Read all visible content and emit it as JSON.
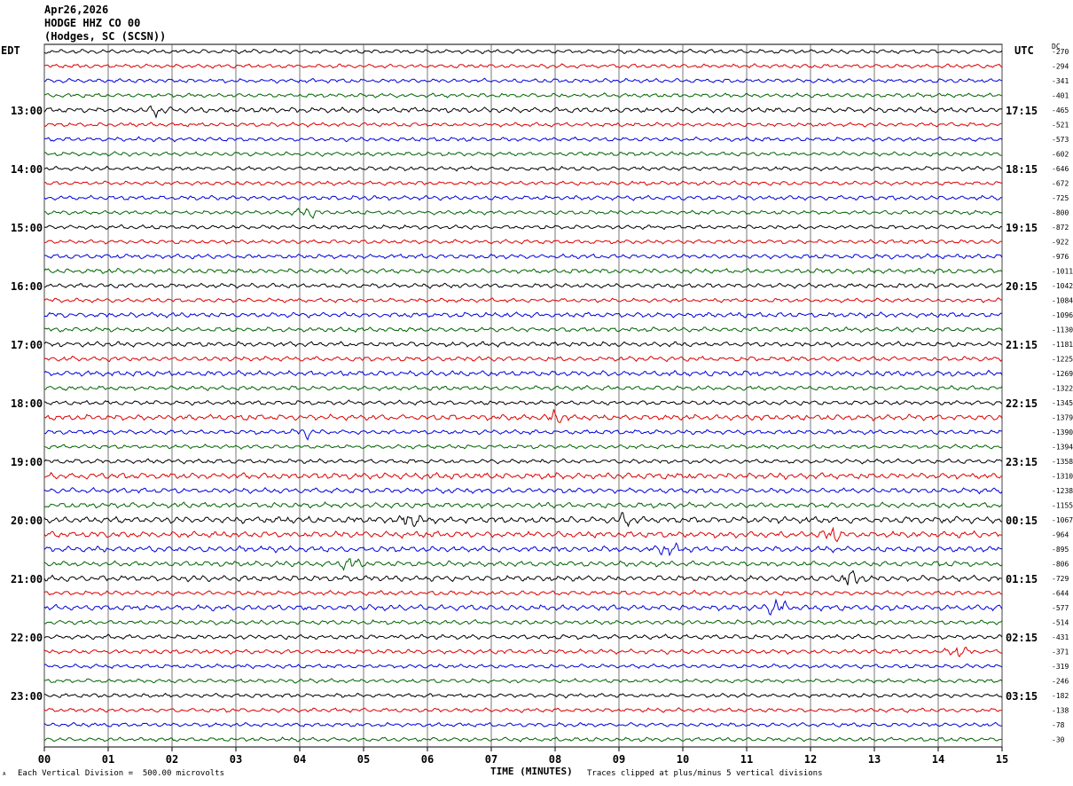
{
  "header": {
    "date": "Apr26,2026",
    "station": "HODGE HHZ CO 00",
    "location": "(Hodges, SC (SCSN))"
  },
  "left_axis_label": "EDT",
  "right_axis_label": "UTC",
  "dc_label": "DC",
  "footer": {
    "scale": "Each Vertical Division =  500.00 microvolts",
    "clip": "Traces clipped at plus/minus 5 vertical divisions",
    "mark": "ᴬ"
  },
  "colors": {
    "trace_cycle": [
      "#000000",
      "#dd0000",
      "#0000dd",
      "#006400"
    ],
    "grid": "#000000"
  },
  "chart_data": {
    "type": "line",
    "title": "",
    "xlabel": "TIME (MINUTES)",
    "xlim": [
      0,
      15
    ],
    "x_ticks": [
      "00",
      "01",
      "02",
      "03",
      "04",
      "05",
      "06",
      "07",
      "08",
      "09",
      "10",
      "11",
      "12",
      "13",
      "14",
      "15"
    ],
    "grid": true,
    "traces_per_hour": 4,
    "trace_count": 48,
    "left_time_labels": [
      "13:00",
      "14:00",
      "15:00",
      "16:00",
      "17:00",
      "18:00",
      "19:00",
      "20:00",
      "21:00",
      "22:00",
      "23:00"
    ],
    "right_time_labels": [
      "17:15",
      "18:15",
      "19:15",
      "20:15",
      "21:15",
      "22:15",
      "23:15",
      "00:15",
      "01:15",
      "02:15",
      "03:15"
    ],
    "dc_offsets": [
      -270,
      -294,
      -341,
      -401,
      -465,
      -521,
      -573,
      -602,
      -646,
      -672,
      -725,
      -800,
      -872,
      -922,
      -976,
      -1011,
      -1042,
      -1084,
      -1096,
      -1130,
      -1181,
      -1225,
      -1269,
      -1322,
      -1345,
      -1379,
      -1390,
      -1394,
      -1358,
      -1310,
      -1238,
      -1155,
      -1067,
      -964,
      -895,
      -806,
      -729,
      -644,
      -577,
      -514,
      -431,
      -371,
      -319,
      -246,
      -182,
      -138,
      -78,
      -30
    ],
    "trace_amplitude": [
      1,
      1,
      1,
      1,
      1.3,
      1,
      1,
      1,
      1,
      1,
      1.1,
      1,
      1,
      1,
      1.1,
      1.2,
      1.1,
      1,
      1.2,
      1.1,
      1.2,
      1.2,
      1.3,
      1.1,
      1.1,
      1.4,
      1.1,
      1,
      1.1,
      1.5,
      1.3,
      1.3,
      1.6,
      1.5,
      1.4,
      1.3,
      1.4,
      1.1,
      1.4,
      1.1,
      1.1,
      1.1,
      1,
      1,
      1,
      1,
      1,
      1
    ],
    "events": [
      {
        "trace": 4,
        "minute": 1.75,
        "amp": 2.2
      },
      {
        "trace": 11,
        "minute": 4.1,
        "amp": 2.5
      },
      {
        "trace": 25,
        "minute": 8.0,
        "amp": 2.8
      },
      {
        "trace": 26,
        "minute": 4.1,
        "amp": 2.4
      },
      {
        "trace": 32,
        "minute": 5.75,
        "amp": 3.5
      },
      {
        "trace": 32,
        "minute": 9.1,
        "amp": 2.6
      },
      {
        "trace": 33,
        "minute": 12.35,
        "amp": 3.5
      },
      {
        "trace": 34,
        "minute": 9.75,
        "amp": 3.0
      },
      {
        "trace": 35,
        "minute": 4.8,
        "amp": 3.0
      },
      {
        "trace": 36,
        "minute": 12.65,
        "amp": 4.5
      },
      {
        "trace": 38,
        "minute": 11.45,
        "amp": 4.0
      },
      {
        "trace": 41,
        "minute": 14.3,
        "amp": 2.2
      }
    ]
  }
}
